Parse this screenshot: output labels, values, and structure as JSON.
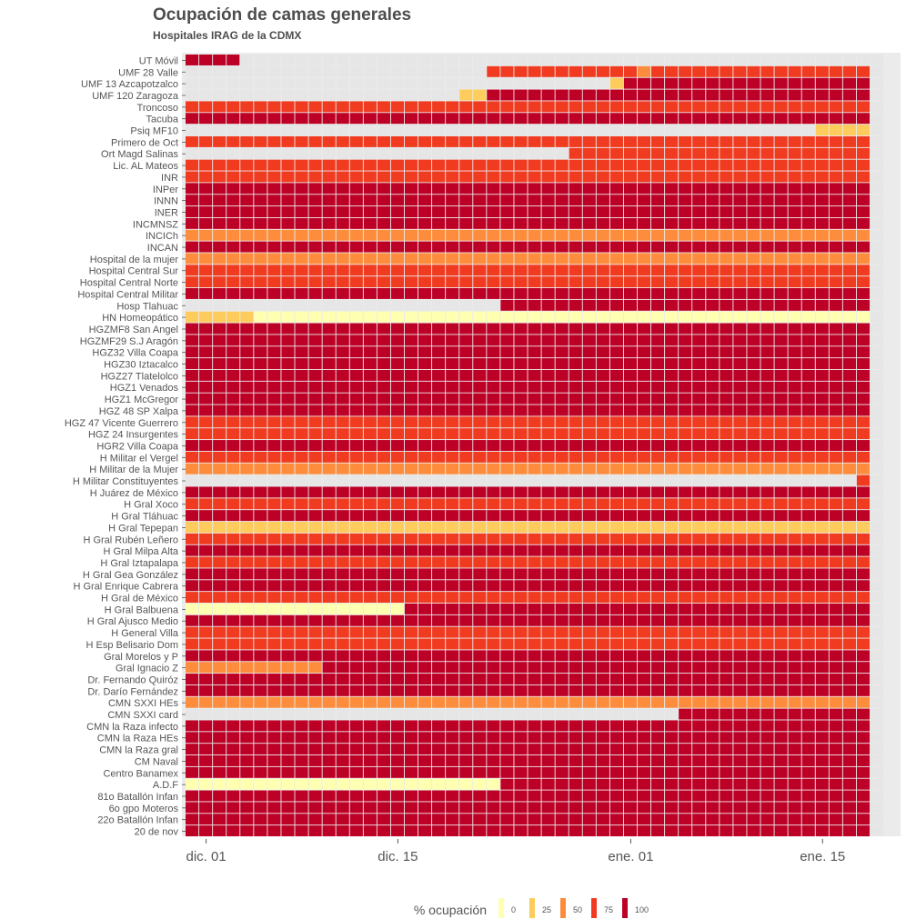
{
  "chart_data": {
    "type": "heatmap",
    "title": "Ocupación de camas generales",
    "subtitle": "Hospitales IRAG de la CDMX",
    "rows": [
      "UT Móvil",
      "UMF 28 Valle",
      "UMF 13 Azcapotzalco",
      "UMF 120 Zaragoza",
      "Troncoso",
      "Tacuba",
      "Psiq MF10",
      "Primero de Oct",
      "Ort Magd Salinas",
      "Lic. AL Mateos",
      "INR",
      "INPer",
      "INNN",
      "INER",
      "INCMNSZ",
      "INCICh",
      "INCAN",
      "Hospital de la mujer",
      "Hospital Central Sur",
      "Hospital Central Norte",
      "Hospital Central Militar",
      "Hosp Tlahuac",
      "HN Homeopático",
      "HGZMF8 San Angel",
      "HGZMF29 S.J Aragón",
      "HGZ32 Villa Coapa",
      "HGZ30 Iztacalco",
      "HGZ27 Tlatelolco",
      "HGZ1 Venados",
      "HGZ1 McGregor",
      "HGZ 48 SP Xalpa",
      "HGZ 47 Vicente Guerrero",
      "HGZ 24 Insurgentes",
      "HGR2 Villa Coapa",
      "H Militar el Vergel",
      "H Militar de la Mujer",
      "H Militar Constituyentes",
      "H Juárez de México",
      "H Gral Xoco",
      "H Gral Tláhuac",
      "H Gral Tepepan",
      "H Gral Rubén Leñero",
      "H Gral Milpa Alta",
      "H Gral Iztapalapa",
      "H Gral Gea González",
      "H Gral Enrique Cabrera",
      "H Gral de México",
      "H Gral Balbuena",
      "H Gral Ajusco Medio",
      "H General Villa",
      "H Esp Belisario Dom",
      "Gral Morelos y P",
      "Gral Ignacio Z",
      "Dr. Fernando Quiróz",
      "Dr. Darío Fernández",
      "CMN SXXI HEs",
      "CMN SXXI card",
      "CMN la Raza infecto",
      "CMN la Raza HEs",
      "CMN la Raza gral",
      "CM Naval",
      "Centro Banamex",
      "A.D.F",
      "81o Batallón Infan",
      "6o gpo Moteros",
      "22o Batallón Infan",
      "20 de nov"
    ],
    "x_start": "2020-11-30",
    "x_end": "2021-01-19",
    "x_ticks": [
      "dic. 01",
      "dic. 15",
      "ene. 01",
      "ene. 15"
    ],
    "x_tick_dates": [
      "2020-12-01",
      "2020-12-15",
      "2021-01-01",
      "2021-01-15"
    ],
    "legend": {
      "title": "% ocupación",
      "levels": [
        "0",
        "25",
        "50",
        "75",
        "100"
      ],
      "colors": [
        "#ffffb2",
        "#fecc5c",
        "#fd8d3c",
        "#f03b20",
        "#bd0026"
      ],
      "position": "bottom"
    },
    "missing_color": "#e6e6e6",
    "profiles": [
      [
        [
          0,
          4,
          100
        ]
      ],
      [
        [
          0,
          22,
          -1
        ],
        [
          22,
          33,
          75
        ],
        [
          33,
          34,
          50
        ],
        [
          34,
          50,
          75
        ]
      ],
      [
        [
          0,
          31,
          -1
        ],
        [
          31,
          32,
          25
        ],
        [
          32,
          50,
          100
        ]
      ],
      [
        [
          0,
          20,
          -1
        ],
        [
          20,
          22,
          25
        ],
        [
          22,
          50,
          100
        ]
      ],
      [
        [
          0,
          50,
          75
        ]
      ],
      [
        [
          0,
          50,
          100
        ]
      ],
      [
        [
          0,
          46,
          -1
        ],
        [
          46,
          50,
          25
        ]
      ],
      [
        [
          0,
          50,
          75
        ]
      ],
      [
        [
          0,
          28,
          -1
        ],
        [
          28,
          50,
          75
        ]
      ],
      [
        [
          0,
          50,
          75
        ]
      ],
      [
        [
          0,
          50,
          75
        ]
      ],
      [
        [
          0,
          50,
          100
        ]
      ],
      [
        [
          0,
          50,
          100
        ]
      ],
      [
        [
          0,
          50,
          100
        ]
      ],
      [
        [
          0,
          50,
          100
        ]
      ],
      [
        [
          0,
          50,
          50
        ]
      ],
      [
        [
          0,
          50,
          100
        ]
      ],
      [
        [
          0,
          50,
          50
        ]
      ],
      [
        [
          0,
          50,
          75
        ]
      ],
      [
        [
          0,
          50,
          75
        ]
      ],
      [
        [
          0,
          50,
          100
        ]
      ],
      [
        [
          0,
          23,
          -1
        ],
        [
          23,
          50,
          100
        ]
      ],
      [
        [
          0,
          5,
          25
        ],
        [
          5,
          23,
          0
        ],
        [
          23,
          50,
          0
        ]
      ],
      [
        [
          0,
          50,
          100
        ]
      ],
      [
        [
          0,
          50,
          100
        ]
      ],
      [
        [
          0,
          50,
          100
        ]
      ],
      [
        [
          0,
          50,
          100
        ]
      ],
      [
        [
          0,
          50,
          100
        ]
      ],
      [
        [
          0,
          50,
          100
        ]
      ],
      [
        [
          0,
          50,
          100
        ]
      ],
      [
        [
          0,
          50,
          100
        ]
      ],
      [
        [
          0,
          50,
          75
        ]
      ],
      [
        [
          0,
          50,
          75
        ]
      ],
      [
        [
          0,
          50,
          100
        ]
      ],
      [
        [
          0,
          50,
          75
        ]
      ],
      [
        [
          0,
          50,
          50
        ]
      ],
      [
        [
          0,
          49,
          -1
        ],
        [
          49,
          50,
          75
        ]
      ],
      [
        [
          0,
          50,
          100
        ]
      ],
      [
        [
          0,
          50,
          75
        ]
      ],
      [
        [
          0,
          50,
          100
        ]
      ],
      [
        [
          0,
          50,
          25
        ]
      ],
      [
        [
          0,
          50,
          75
        ]
      ],
      [
        [
          0,
          50,
          100
        ]
      ],
      [
        [
          0,
          50,
          75
        ]
      ],
      [
        [
          0,
          50,
          100
        ]
      ],
      [
        [
          0,
          50,
          100
        ]
      ],
      [
        [
          0,
          50,
          75
        ]
      ],
      [
        [
          0,
          16,
          0
        ],
        [
          16,
          50,
          100
        ]
      ],
      [
        [
          0,
          50,
          100
        ]
      ],
      [
        [
          0,
          50,
          75
        ]
      ],
      [
        [
          0,
          50,
          75
        ]
      ],
      [
        [
          0,
          50,
          100
        ]
      ],
      [
        [
          0,
          10,
          50
        ],
        [
          10,
          50,
          100
        ]
      ],
      [
        [
          0,
          50,
          100
        ]
      ],
      [
        [
          0,
          50,
          100
        ]
      ],
      [
        [
          0,
          50,
          50
        ]
      ],
      [
        [
          0,
          36,
          -1
        ],
        [
          36,
          50,
          100
        ]
      ],
      [
        [
          0,
          50,
          100
        ]
      ],
      [
        [
          0,
          50,
          100
        ]
      ],
      [
        [
          0,
          50,
          100
        ]
      ],
      [
        [
          0,
          50,
          100
        ]
      ],
      [
        [
          0,
          50,
          100
        ]
      ],
      [
        [
          0,
          23,
          0
        ],
        [
          23,
          50,
          100
        ]
      ],
      [
        [
          0,
          50,
          100
        ]
      ],
      [
        [
          0,
          50,
          100
        ]
      ],
      [
        [
          0,
          50,
          100
        ]
      ],
      [
        [
          0,
          50,
          100
        ]
      ]
    ]
  }
}
